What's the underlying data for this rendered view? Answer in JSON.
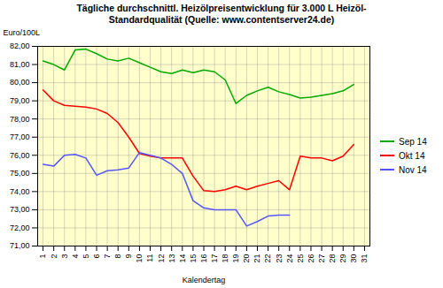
{
  "chart_data": {
    "type": "line",
    "title": "Tägliche durchschnittl. Heizölpreisentwicklung für 3.000 L Heizöl-\nStandardqualität (Quelle: www.contentserver24.de)",
    "x_label": "Kalendertag",
    "y_label": "Euro/100L",
    "x": [
      1,
      2,
      3,
      4,
      5,
      6,
      7,
      8,
      9,
      10,
      11,
      12,
      13,
      14,
      15,
      16,
      17,
      18,
      19,
      20,
      21,
      22,
      23,
      24,
      25,
      26,
      27,
      28,
      29,
      30,
      31
    ],
    "series": [
      {
        "name": "Sep 14",
        "color": "#00AA00",
        "values": [
          81.2,
          81.0,
          80.7,
          81.8,
          81.85,
          81.6,
          81.3,
          81.2,
          81.35,
          81.1,
          80.85,
          80.6,
          80.5,
          80.7,
          80.55,
          80.7,
          80.6,
          80.15,
          78.85,
          79.3,
          79.55,
          79.75,
          79.5,
          79.35,
          79.15,
          79.2,
          79.3,
          79.4,
          79.55,
          79.9,
          null
        ]
      },
      {
        "name": "Okt 14",
        "color": "#FF0000",
        "values": [
          79.6,
          79.0,
          78.75,
          78.7,
          78.65,
          78.55,
          78.3,
          77.8,
          77.0,
          76.1,
          75.95,
          75.85,
          75.85,
          75.85,
          74.85,
          74.05,
          74.0,
          74.1,
          74.3,
          74.1,
          74.3,
          74.45,
          74.6,
          74.1,
          75.95,
          75.85,
          75.85,
          75.7,
          75.95,
          76.6,
          null
        ]
      },
      {
        "name": "Nov 14",
        "color": "#5555FF",
        "values": [
          75.5,
          75.4,
          76.0,
          76.05,
          75.85,
          74.9,
          75.15,
          75.2,
          75.3,
          76.15,
          76.0,
          75.85,
          75.5,
          75.0,
          73.5,
          73.1,
          73.0,
          73.0,
          73.0,
          72.1,
          72.35,
          72.65,
          72.7,
          72.7,
          null,
          null,
          null,
          null,
          null,
          null,
          null
        ]
      }
    ],
    "xlim": [
      0.5,
      31.5
    ],
    "xticks": [
      1,
      2,
      3,
      4,
      5,
      6,
      7,
      8,
      9,
      10,
      11,
      12,
      13,
      14,
      15,
      16,
      17,
      18,
      19,
      20,
      21,
      22,
      23,
      24,
      25,
      26,
      27,
      28,
      29,
      30,
      31
    ],
    "ylim": [
      71.0,
      82.0
    ],
    "yticks": [
      {
        "value": 71.0,
        "label": "71,00"
      },
      {
        "value": 72.0,
        "label": "72,00"
      },
      {
        "value": 73.0,
        "label": "73,00"
      },
      {
        "value": 74.0,
        "label": "74,00"
      },
      {
        "value": 75.0,
        "label": "75,00"
      },
      {
        "value": 76.0,
        "label": "76,00"
      },
      {
        "value": 77.0,
        "label": "77,00"
      },
      {
        "value": 78.0,
        "label": "78,00"
      },
      {
        "value": 79.0,
        "label": "79,00"
      },
      {
        "value": 80.0,
        "label": "80,00"
      },
      {
        "value": 81.0,
        "label": "81,00"
      },
      {
        "value": 82.0,
        "label": "82,00"
      }
    ],
    "grid": true,
    "legend": "right"
  }
}
